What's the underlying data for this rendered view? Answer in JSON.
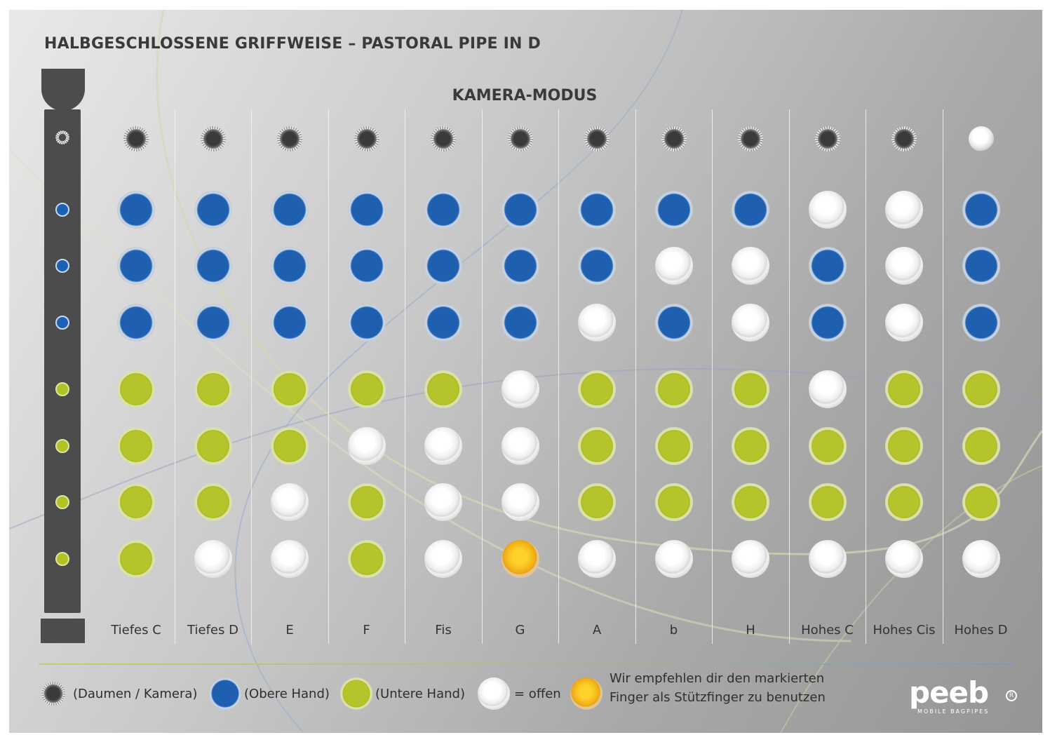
{
  "title": "HALBGESCHLOSSENE GRIFFWEISE – PASTORAL PIPE IN D",
  "subtitle": "KAMERA-MODUS",
  "colors": {
    "blue": "#1e5fb0",
    "green": "#b4c42a",
    "open": "#f2f2f2",
    "orange": "#f1b118",
    "pipe": "#4c4c4c"
  },
  "pipe_holes": [
    "thumb",
    "blue",
    "blue",
    "blue",
    "green",
    "green",
    "green",
    "green"
  ],
  "columns": [
    {
      "label": "Tiefes C",
      "holes": [
        "thumb",
        "blue",
        "blue",
        "blue",
        "green",
        "green",
        "green",
        "green"
      ]
    },
    {
      "label": "Tiefes D",
      "holes": [
        "thumb",
        "blue",
        "blue",
        "blue",
        "green",
        "green",
        "green",
        "open"
      ]
    },
    {
      "label": "E",
      "holes": [
        "thumb",
        "blue",
        "blue",
        "blue",
        "green",
        "green",
        "open",
        "open"
      ]
    },
    {
      "label": "F",
      "holes": [
        "thumb",
        "blue",
        "blue",
        "blue",
        "green",
        "open",
        "green",
        "green"
      ]
    },
    {
      "label": "Fis",
      "holes": [
        "thumb",
        "blue",
        "blue",
        "blue",
        "green",
        "open",
        "open",
        "open"
      ]
    },
    {
      "label": "G",
      "holes": [
        "thumb",
        "blue",
        "blue",
        "blue",
        "open",
        "open",
        "open",
        "orange"
      ]
    },
    {
      "label": "A",
      "holes": [
        "thumb",
        "blue",
        "blue",
        "open",
        "green",
        "green",
        "green",
        "open"
      ]
    },
    {
      "label": "b",
      "holes": [
        "thumb",
        "blue",
        "open",
        "blue",
        "green",
        "green",
        "green",
        "open"
      ]
    },
    {
      "label": "H",
      "holes": [
        "thumb",
        "blue",
        "open",
        "open",
        "green",
        "green",
        "green",
        "open"
      ]
    },
    {
      "label": "Hohes C",
      "holes": [
        "thumb",
        "open",
        "blue",
        "blue",
        "open",
        "green",
        "green",
        "open"
      ]
    },
    {
      "label": "Hohes Cis",
      "holes": [
        "thumb",
        "open",
        "open",
        "open",
        "green",
        "green",
        "green",
        "open"
      ]
    },
    {
      "label": "Hohes D",
      "holes": [
        "thumb-open",
        "blue",
        "blue",
        "blue",
        "green",
        "green",
        "green",
        "open"
      ]
    }
  ],
  "legend": [
    {
      "icon": "thumb-icon",
      "text": "(Daumen / Kamera)"
    },
    {
      "icon": "blue-hole-icon",
      "text": "(Obere Hand)"
    },
    {
      "icon": "green-hole-icon",
      "text": "(Untere Hand)"
    },
    {
      "icon": "open-hole-icon",
      "text": "= offen"
    },
    {
      "icon": "orange-hole-icon",
      "text": ""
    }
  ],
  "legend_note": {
    "line1": "Wir empfehlen dir den markierten",
    "line2": "Finger als Stützfinger zu benutzen"
  },
  "logo": {
    "word": "peeb",
    "tagline": "MOBILE BAGPIPES"
  }
}
